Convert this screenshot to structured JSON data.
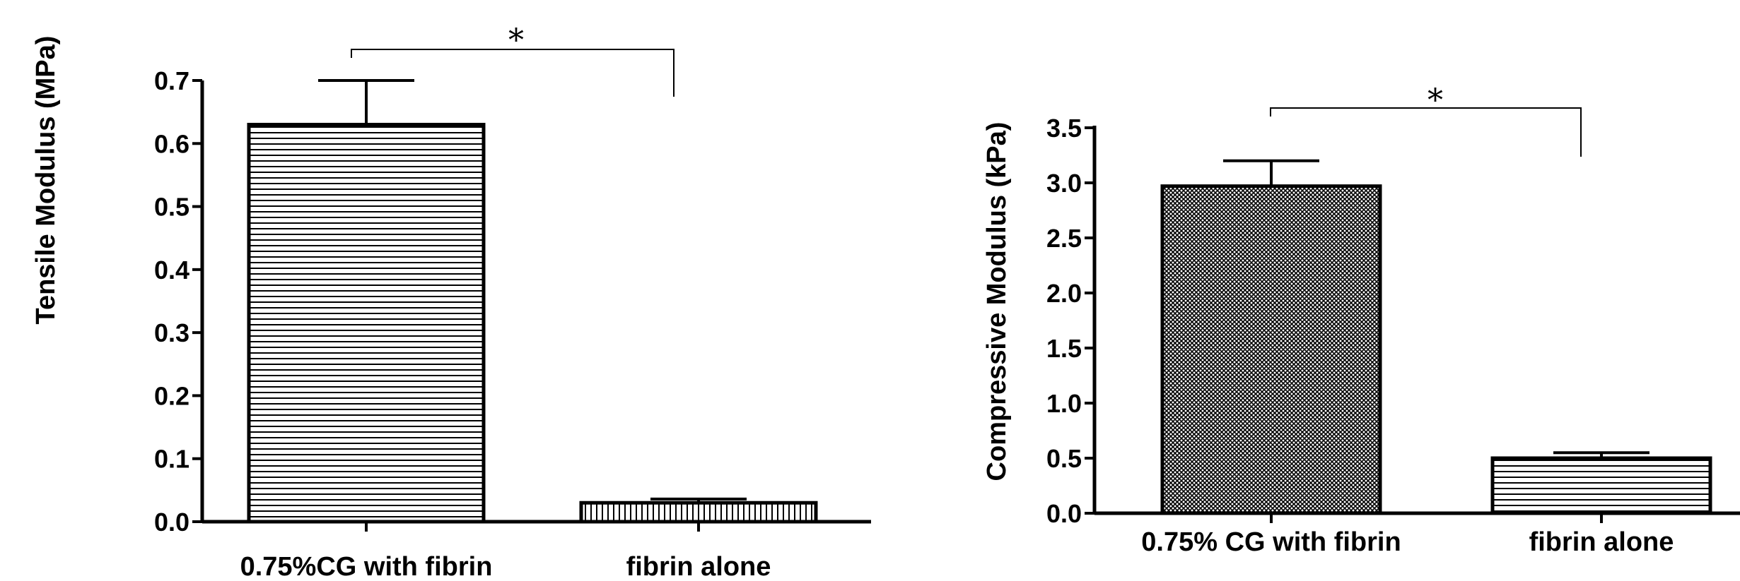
{
  "chart_data": [
    {
      "type": "bar",
      "categories": [
        "0.75%CG with fibrin",
        "fibrin alone"
      ],
      "values": [
        0.63,
        0.03
      ],
      "errors": [
        0.07,
        0.006
      ],
      "ylabel": "Tensile Modulus (MPa)",
      "ylim": [
        0,
        0.7
      ],
      "yticks": [
        "0.0",
        "0.1",
        "0.2",
        "0.3",
        "0.4",
        "0.5",
        "0.6",
        "0.7"
      ],
      "patterns": [
        "horizontal-lines",
        "vertical-lines"
      ],
      "significance": "*",
      "grid": false
    },
    {
      "type": "bar",
      "categories": [
        "0.75% CG with fibrin",
        "fibrin alone"
      ],
      "values": [
        2.97,
        0.5
      ],
      "errors": [
        0.23,
        0.05
      ],
      "ylabel": "Compressive  Modulus (kPa)",
      "ylim": [
        0,
        3.5
      ],
      "yticks": [
        "0.0",
        "0.5",
        "1.0",
        "1.5",
        "2.0",
        "2.5",
        "3.0",
        "3.5"
      ],
      "patterns": [
        "crosshatch",
        "horizontal-lines"
      ],
      "significance": "*",
      "grid": false
    }
  ]
}
